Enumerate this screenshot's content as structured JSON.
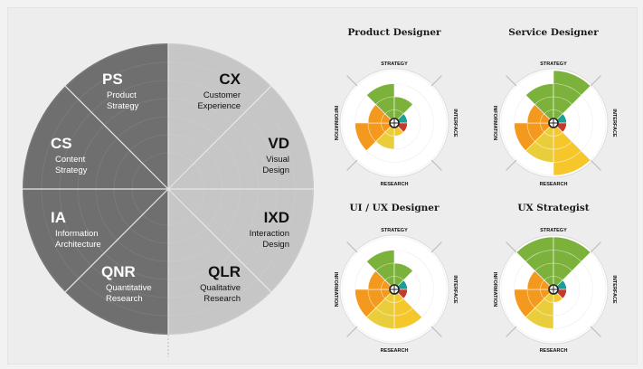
{
  "main_wheel": {
    "segments": [
      {
        "code": "PS",
        "lines": [
          "Product",
          "Strategy"
        ],
        "side": "left"
      },
      {
        "code": "CS",
        "lines": [
          "Content",
          "Strategy"
        ],
        "side": "left"
      },
      {
        "code": "IA",
        "lines": [
          "Information",
          "Architecture"
        ],
        "side": "left"
      },
      {
        "code": "QNR",
        "lines": [
          "Quantitative",
          "Research"
        ],
        "side": "left"
      },
      {
        "code": "CX",
        "lines": [
          "Customer",
          "Experience"
        ],
        "side": "right"
      },
      {
        "code": "VD",
        "lines": [
          "Visual",
          "Design"
        ],
        "side": "right"
      },
      {
        "code": "IXD",
        "lines": [
          "Interaction",
          "Design"
        ],
        "side": "right"
      },
      {
        "code": "QLR",
        "lines": [
          "Qualitative",
          "Research"
        ],
        "side": "right"
      }
    ],
    "colors": {
      "left": "#6f6f6f",
      "right": "#c6c6c6",
      "divider": "#e6e6e6"
    }
  },
  "axis_labels": {
    "top": "STRATEGY",
    "bottom": "RESEARCH",
    "left": "INFORMATION",
    "right": "INTERFACE"
  },
  "role_charts": [
    {
      "title": "Product Designer",
      "values": [
        3,
        2,
        1,
        1,
        1,
        2,
        3,
        2
      ]
    },
    {
      "title": "Service Designer",
      "values": [
        3,
        4,
        1,
        1,
        4,
        3,
        3,
        2
      ]
    },
    {
      "title": "UI / UX Designer",
      "values": [
        3,
        2,
        1,
        1,
        3,
        3,
        3,
        2
      ]
    },
    {
      "title": "UX Strategist",
      "values": [
        4,
        4,
        1,
        1,
        1,
        3,
        3,
        2
      ]
    }
  ],
  "sector_colors": [
    "#7cb23c",
    "#7cb23c",
    "#1e9c98",
    "#c43a2a",
    "#f6c72b",
    "#eacd3a",
    "#f39a1e",
    "#f39a1e"
  ],
  "sector_order_note_free": [
    "PS",
    "CX",
    "VD",
    "IXD",
    "QLR",
    "QNR",
    "IA",
    "CS"
  ]
}
